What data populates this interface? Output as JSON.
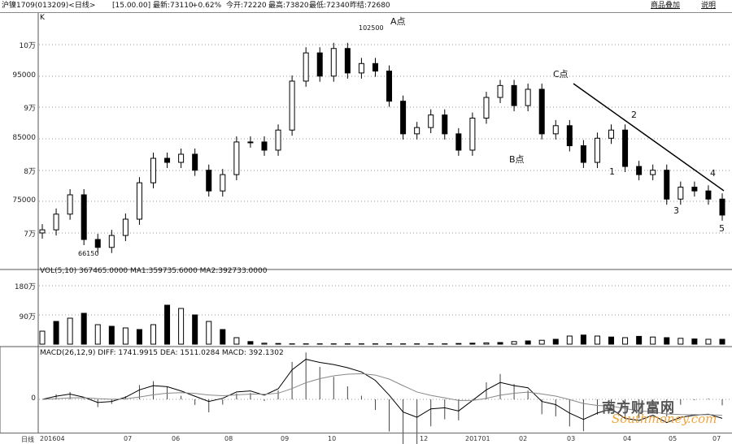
{
  "header": {
    "symbol": "沪镍1709(013209)<日线>",
    "time": "[15.00.00]",
    "latest": "最新:73110",
    "change": "+0.62%",
    "open": "今开:72220",
    "high": "最高:73820",
    "low": "最低:72340",
    "prev_settle": "昨结:72680",
    "overlay_button": "商品叠加",
    "help_button": "说明"
  },
  "main_panel": {
    "label": "K",
    "y_ticks": [
      "10万",
      "95000",
      "9万",
      "85000",
      "8万",
      "75000",
      "7万"
    ],
    "annotations": {
      "a": "A点",
      "a_value": "102500",
      "b": "B点",
      "c": "C点",
      "low_value": "66150",
      "w1": "1",
      "w2": "2",
      "w3": "3",
      "w4": "4",
      "w5": "5"
    }
  },
  "volume_panel": {
    "title": "VOL(5,10) 367465.0000 MA1:359735.6000 MA2:392733.0000",
    "y_ticks": [
      "180万",
      "90万"
    ]
  },
  "macd_panel": {
    "title": "MACD(26,12,9) DIFF: 1741.9915 DEA: 1511.0284 MACD: 392.1302",
    "y_tick": "0"
  },
  "x_axis": {
    "period": "日线",
    "ticks": [
      "201604",
      "07",
      "06",
      "08",
      "09",
      "10",
      "12",
      "201701",
      "02",
      "03",
      "04",
      "05",
      "07"
    ]
  },
  "watermark": {
    "cn": "南方财富网",
    "en": "Southmoney.com"
  },
  "chart_data": {
    "type": "candlestick",
    "y_unit": "price",
    "ylim": [
      65000,
      105000
    ],
    "close": [
      70500,
      73000,
      76080,
      68960,
      67700,
      69600,
      72200,
      78000,
      81900,
      81250,
      82550,
      80000,
      76700,
      79300,
      84500,
      84500,
      83200,
      86400,
      94200,
      98700,
      95000,
      99400,
      95500,
      97000,
      95800,
      91000,
      85800,
      86800,
      88800,
      85800,
      83200,
      88300,
      91600,
      93500,
      90300,
      92900,
      85800,
      87100,
      83900,
      81250,
      85100,
      86400,
      80600,
      79300,
      80000,
      75400,
      77300,
      76700,
      75400,
      72850
    ],
    "volume_wan": [
      40,
      70,
      80,
      95,
      60,
      55,
      50,
      45,
      60,
      120,
      110,
      90,
      70,
      45,
      20,
      8,
      3,
      2,
      1,
      1,
      1,
      1,
      1,
      1,
      1,
      1,
      1,
      1,
      1,
      1,
      2,
      3,
      4,
      5,
      8,
      10,
      12,
      15,
      25,
      28,
      25,
      22,
      20,
      24,
      22,
      20,
      18,
      16,
      15,
      15
    ],
    "macd_diff": [
      0,
      300,
      500,
      200,
      -300,
      -200,
      200,
      900,
      1300,
      1200,
      800,
      300,
      -200,
      100,
      700,
      800,
      400,
      1000,
      2800,
      3800,
      3500,
      3300,
      3000,
      2600,
      1800,
      400,
      -1200,
      -1700,
      -900,
      -800,
      -1100,
      -100,
      900,
      1600,
      1300,
      1100,
      -200,
      -500,
      -1300,
      -1900,
      -1300,
      -900,
      -1800,
      -2000,
      -1500,
      -2200,
      -1700,
      -1500,
      -1400,
      -1800
    ]
  }
}
